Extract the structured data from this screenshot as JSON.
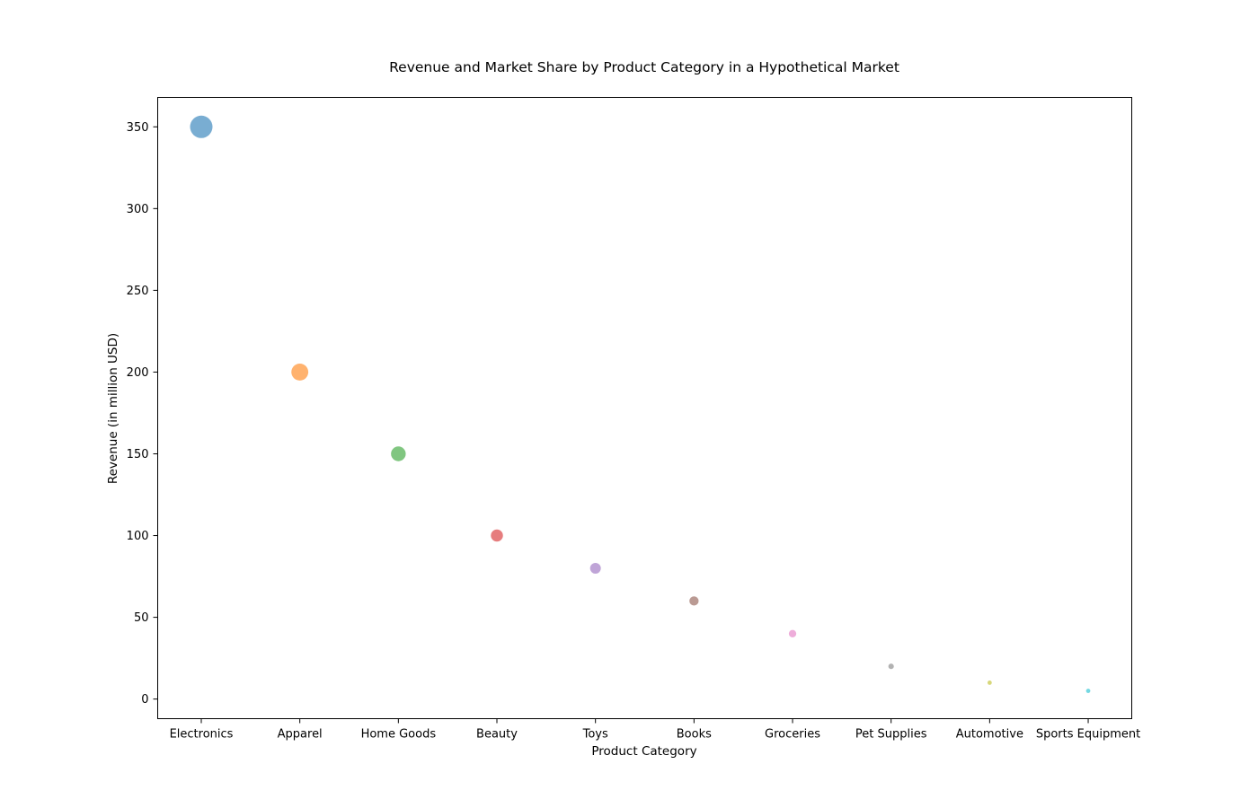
{
  "chart_data": {
    "type": "scatter",
    "title": "Revenue and Market Share by Product Category in a Hypothetical Market",
    "xlabel": "Product Category",
    "ylabel": "Revenue (in million USD)",
    "categories": [
      "Electronics",
      "Apparel",
      "Home Goods",
      "Beauty",
      "Toys",
      "Books",
      "Groceries",
      "Pet Supplies",
      "Automotive",
      "Sports Equipment"
    ],
    "values": [
      350,
      200,
      150,
      100,
      80,
      60,
      40,
      20,
      10,
      5
    ],
    "bubble_size_relative": [
      1.0,
      0.57,
      0.43,
      0.29,
      0.23,
      0.17,
      0.11,
      0.06,
      0.03,
      0.014
    ],
    "colors": [
      "#1f77b4",
      "#ff7f0e",
      "#2ca02c",
      "#d62728",
      "#9467bd",
      "#8c564b",
      "#e377c2",
      "#7f7f7f",
      "#bcbd22",
      "#17becf"
    ],
    "ylim": [
      -12,
      368
    ],
    "yticks": [
      0,
      50,
      100,
      150,
      200,
      250,
      300,
      350
    ],
    "grid": false,
    "legend": "none"
  }
}
